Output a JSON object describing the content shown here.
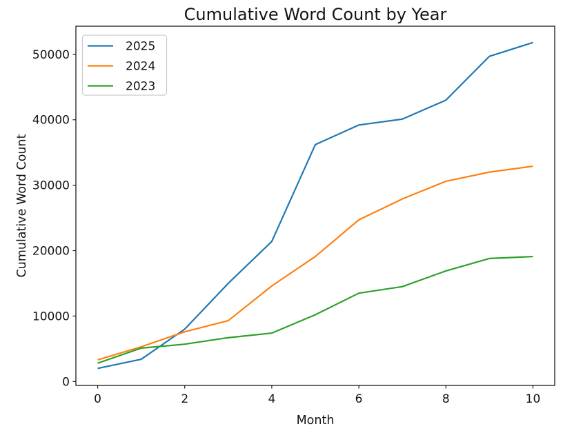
{
  "figure": {
    "title": "Cumulative Word Count by Year",
    "xlabel": "Month",
    "ylabel": "Cumulative Word Count"
  },
  "chart_data": {
    "type": "line",
    "title": "Cumulative Word Count by Year",
    "xlabel": "Month",
    "ylabel": "Cumulative Word Count",
    "x": [
      0,
      1,
      2,
      3,
      4,
      5,
      6,
      7,
      8,
      9,
      10
    ],
    "series": [
      {
        "name": "2025",
        "color": "#1f77b4",
        "values": [
          2000,
          3400,
          8000,
          15000,
          21400,
          36200,
          39200,
          40100,
          43000,
          49700,
          51800
        ]
      },
      {
        "name": "2024",
        "color": "#ff7f0e",
        "values": [
          3300,
          5300,
          7600,
          9300,
          14600,
          19100,
          24700,
          27900,
          30600,
          32000,
          32900
        ]
      },
      {
        "name": "2023",
        "color": "#2ca02c",
        "values": [
          2800,
          5100,
          5700,
          6700,
          7400,
          10200,
          13500,
          14500,
          16900,
          18800,
          19100
        ]
      }
    ],
    "xticks": [
      0,
      2,
      4,
      6,
      8,
      10
    ],
    "yticks": [
      0,
      10000,
      20000,
      30000,
      40000,
      50000
    ],
    "xlim": [
      -0.5,
      10.5
    ],
    "ylim": [
      -600,
      54300
    ],
    "grid": false,
    "legend_position": "upper left",
    "legend_entries": [
      "2025",
      "2024",
      "2023"
    ],
    "line_width": 2.2,
    "text_color": "#141414",
    "spine_color": "#1a1a1a",
    "tick_color": "#1a1a1a",
    "legend_border_color": "#cccccc",
    "background": "#ffffff"
  }
}
